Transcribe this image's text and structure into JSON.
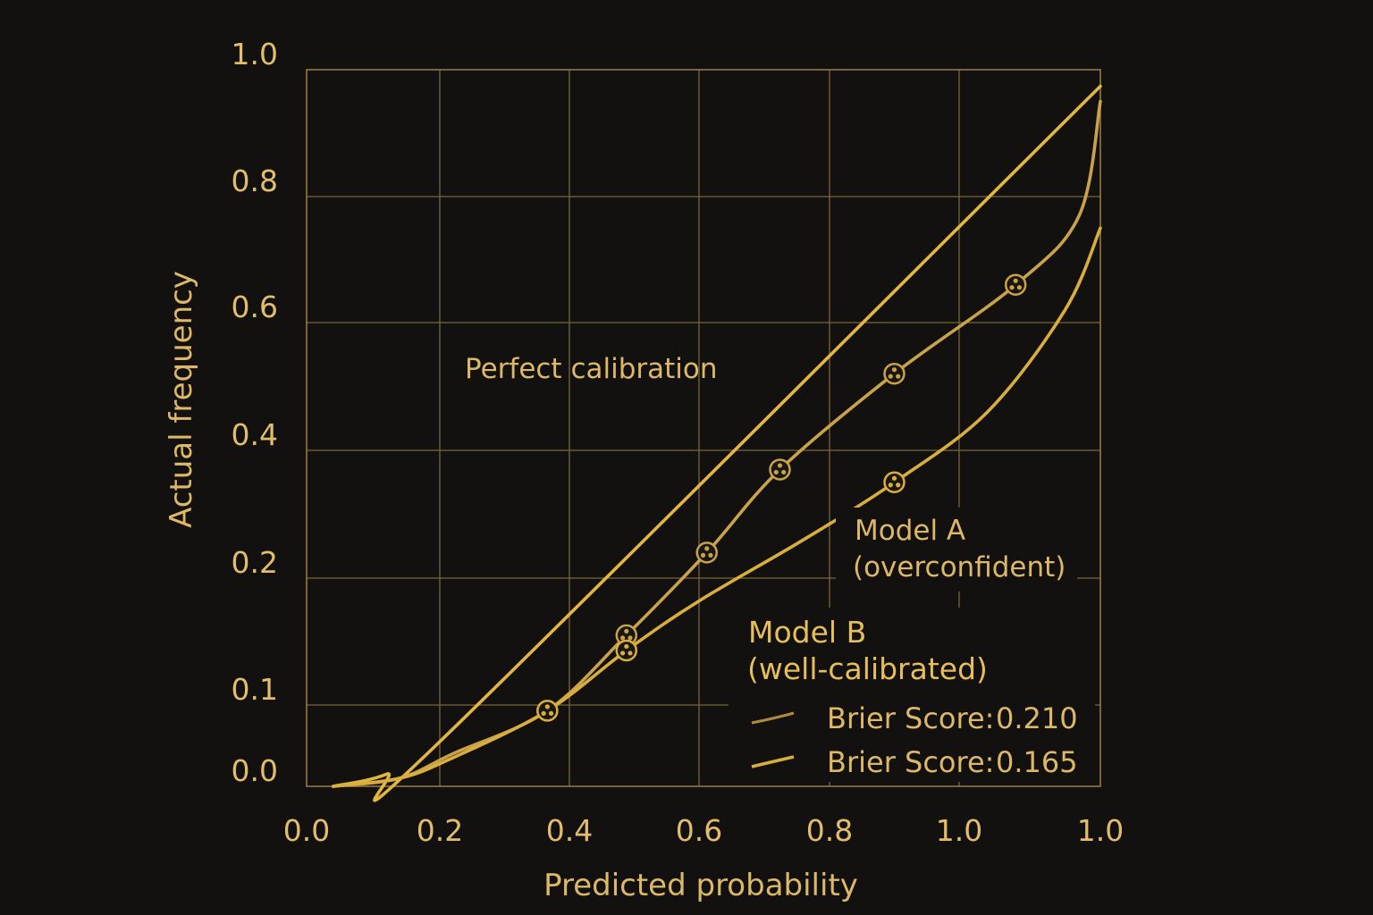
{
  "colors": {
    "background": "#121110",
    "grid": "#7a6638",
    "text": "#dcb867",
    "line_perfect": "#e2b640",
    "line_model_a": "#c9a24a",
    "line_model_b": "#d9ae3c"
  },
  "chart_data": {
    "type": "line",
    "title": "",
    "xlabel": "Predicted probability",
    "ylabel": "Actual frequency",
    "x_tick_labels": [
      "0.0",
      "0.2",
      "0.4",
      "0.6",
      "0.8",
      "1.0",
      "1.0"
    ],
    "y_tick_labels": [
      "0.0",
      "0.1",
      "0.2",
      "0.4",
      "0.6",
      "0.8",
      "1.0"
    ],
    "xlim": [
      0,
      6
    ],
    "ylim": [
      0,
      6
    ],
    "grid": true,
    "scale_note": "tick labels are printed unevenly; values below are given in tick-index units",
    "series": [
      {
        "name": "Perfect calibration",
        "color": "#e2b640",
        "points": [
          [
            0.2,
            0.0
          ],
          [
            0.6,
            0.15
          ],
          [
            1.0,
            0.55
          ],
          [
            6.0,
            5.87
          ]
        ],
        "markers": false
      },
      {
        "name": "Model A (overconfident)",
        "color": "#c9a24a",
        "points": [
          [
            0.2,
            0.0
          ],
          [
            0.7,
            0.1
          ],
          [
            1.1,
            0.4
          ],
          [
            1.83,
            0.93
          ],
          [
            2.44,
            1.55
          ],
          [
            3.06,
            2.2
          ],
          [
            3.62,
            2.85
          ],
          [
            4.5,
            3.6
          ],
          [
            5.4,
            4.3
          ],
          [
            5.85,
            4.85
          ],
          [
            6.0,
            5.75
          ]
        ],
        "markers": [
          [
            1.83,
            0.93
          ],
          [
            2.44,
            1.55
          ],
          [
            3.06,
            2.2
          ],
          [
            3.62,
            2.85
          ],
          [
            4.5,
            3.6
          ],
          [
            5.4,
            4.3
          ]
        ]
      },
      {
        "name": "Model B (well-calibrated)",
        "color": "#d9ae3c",
        "points": [
          [
            0.2,
            0.0
          ],
          [
            0.7,
            0.1
          ],
          [
            1.1,
            0.35
          ],
          [
            1.83,
            0.93
          ],
          [
            2.44,
            1.43
          ],
          [
            3.0,
            1.82
          ],
          [
            3.8,
            2.3
          ],
          [
            4.5,
            2.75
          ],
          [
            5.2,
            3.3
          ],
          [
            5.75,
            4.1
          ],
          [
            6.0,
            4.75
          ]
        ],
        "markers": [
          [
            1.83,
            0.93
          ],
          [
            2.44,
            1.43
          ],
          [
            4.5,
            2.75
          ]
        ]
      }
    ],
    "annotations": {
      "perfect": "Perfect calibration",
      "model_a_line1": "Model A",
      "model_a_line2": "(overconfident)",
      "model_b_line1": "Model B",
      "model_b_line2": "(well-calibrated)"
    },
    "legend": {
      "placement": "bottom-right",
      "entries": [
        {
          "label": "Brier Score:",
          "value": "0.210"
        },
        {
          "label": "Brier Score:",
          "value": "0.165"
        }
      ]
    }
  }
}
